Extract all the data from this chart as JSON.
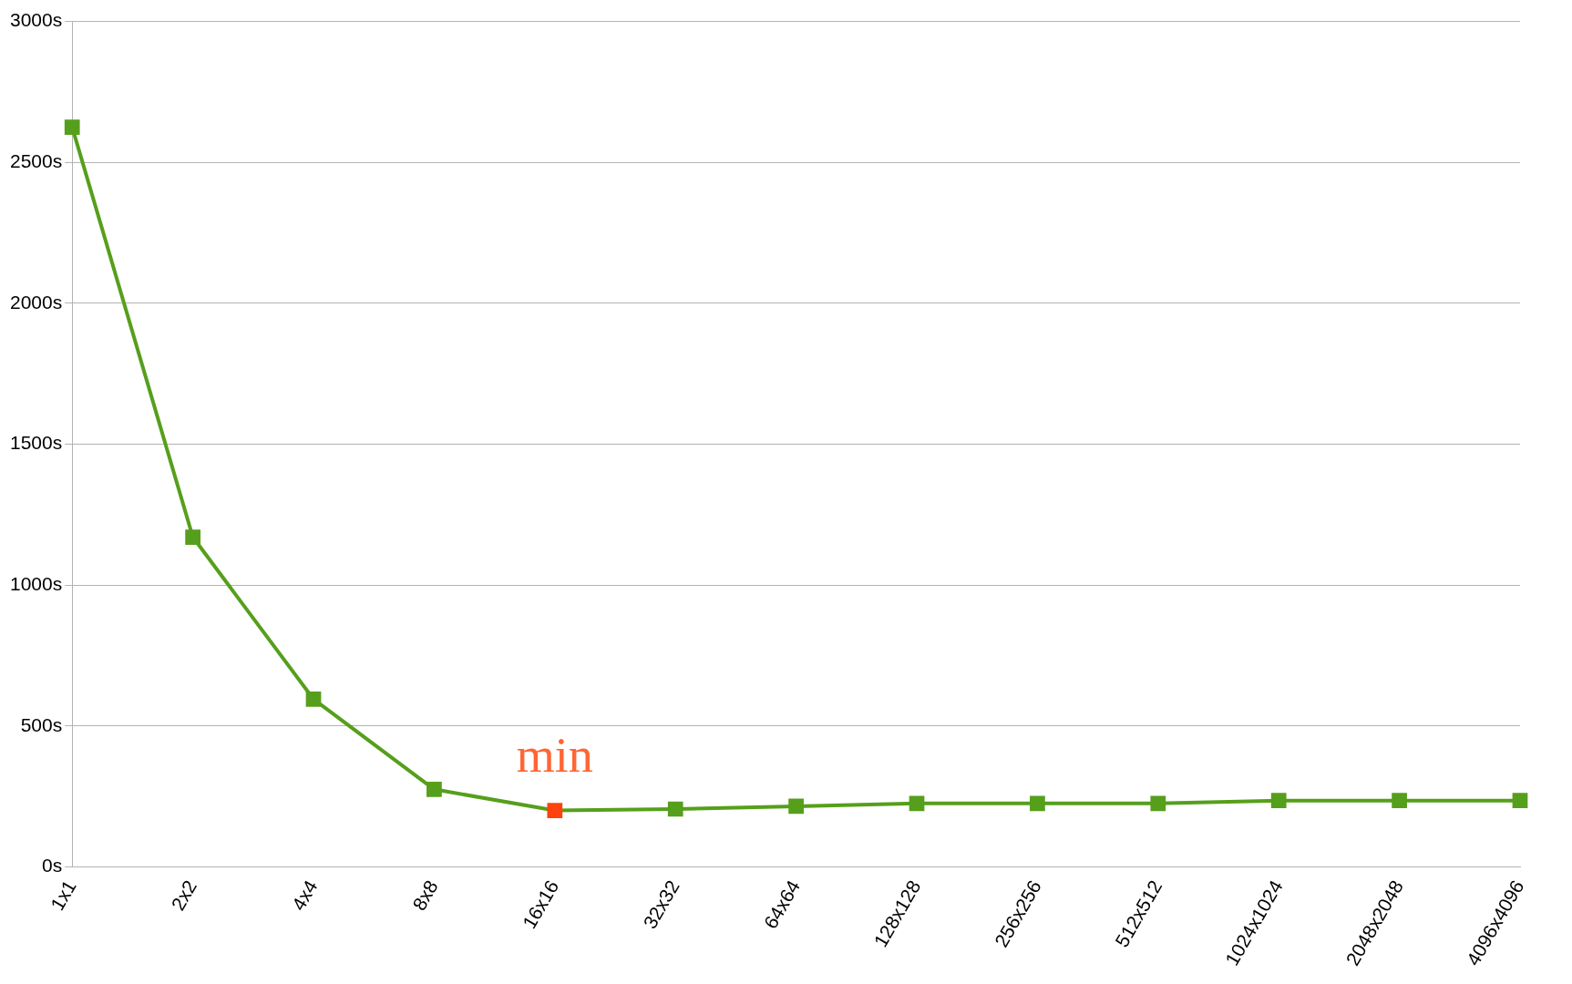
{
  "chart_data": {
    "type": "line",
    "categories": [
      "1x1",
      "2x2",
      "4x4",
      "8x8",
      "16x16",
      "32x32",
      "64x64",
      "128x128",
      "256x256",
      "512x512",
      "1024x1024",
      "2048x2048",
      "4096x4096"
    ],
    "series": [
      {
        "color": "#569f1c",
        "colors": [
          "#569f1c",
          "#569f1c",
          "#569f1c",
          "#569f1c",
          "#ff420e",
          "#569f1c",
          "#569f1c",
          "#569f1c",
          "#569f1c",
          "#569f1c",
          "#569f1c",
          "#569f1c",
          "#569f1c"
        ],
        "values": [
          2625,
          1170,
          595,
          275,
          200,
          205,
          215,
          225,
          225,
          225,
          235,
          235,
          235
        ]
      }
    ],
    "ylim": [
      0,
      3000
    ],
    "yticks": [
      {
        "value": 0,
        "label": "0s"
      },
      {
        "value": 500,
        "label": "500s"
      },
      {
        "value": 1000,
        "label": "1000s"
      },
      {
        "value": 1500,
        "label": "1500s"
      },
      {
        "value": 2000,
        "label": "2000s"
      },
      {
        "value": 2500,
        "label": "2500s"
      },
      {
        "value": 3000,
        "label": "3000s"
      }
    ],
    "grid": "y",
    "legend": false,
    "marker": "square",
    "line_style": "solid",
    "annotations": [
      {
        "text": "min",
        "x": "16x16",
        "y": 200
      }
    ]
  }
}
